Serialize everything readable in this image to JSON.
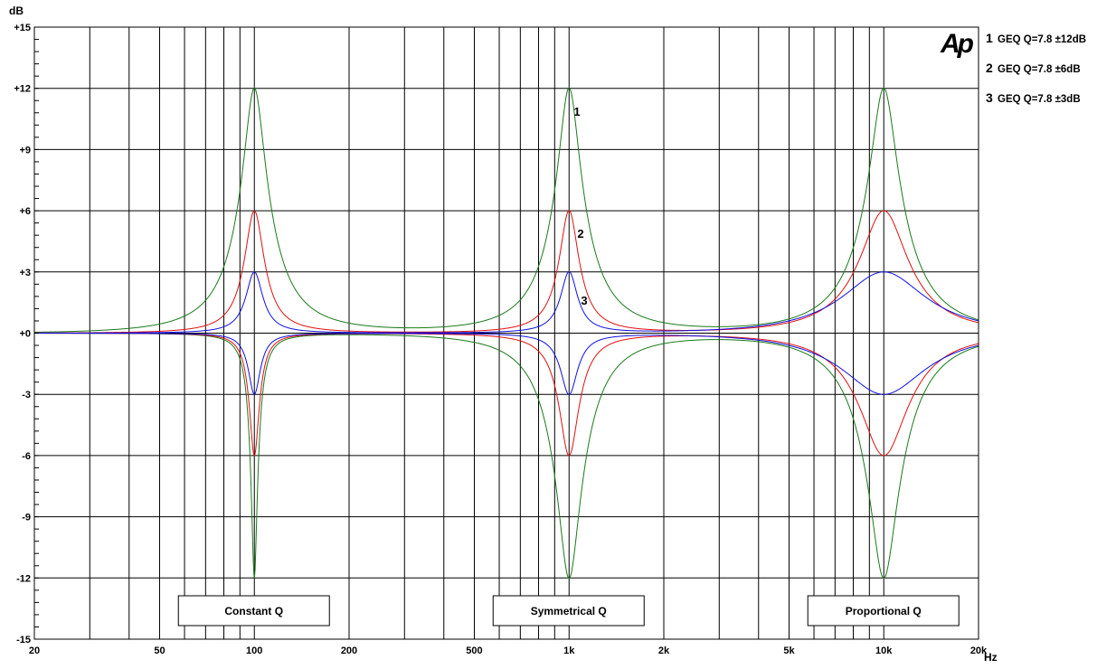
{
  "chart_data": {
    "type": "line",
    "xlabel": "Hz",
    "ylabel": "dB",
    "xscale": "log",
    "xlim": [
      20,
      20000
    ],
    "ylim": [
      -15,
      15
    ],
    "grid": true,
    "legend_placement": "right",
    "x_tick_labels": [
      {
        "value": 20,
        "label": "20"
      },
      {
        "value": 50,
        "label": "50"
      },
      {
        "value": 100,
        "label": "100"
      },
      {
        "value": 200,
        "label": "200"
      },
      {
        "value": 500,
        "label": "500"
      },
      {
        "value": 1000,
        "label": "1k"
      },
      {
        "value": 2000,
        "label": "2k"
      },
      {
        "value": 5000,
        "label": "5k"
      },
      {
        "value": 10000,
        "label": "10k"
      },
      {
        "value": 20000,
        "label": "20k"
      }
    ],
    "y_tick_labels": [
      {
        "value": 15,
        "label": "+15"
      },
      {
        "value": 12,
        "label": "+12"
      },
      {
        "value": 9,
        "label": "+9"
      },
      {
        "value": 6,
        "label": "+6"
      },
      {
        "value": 3,
        "label": "+3"
      },
      {
        "value": 0,
        "label": "+0"
      },
      {
        "value": -3,
        "label": "-3"
      },
      {
        "value": -6,
        "label": "-6"
      },
      {
        "value": -9,
        "label": "-9"
      },
      {
        "value": -12,
        "label": "-12"
      },
      {
        "value": -15,
        "label": "-15"
      }
    ],
    "sections": [
      {
        "center_hz": 100,
        "type": "constant",
        "label": "Constant Q"
      },
      {
        "center_hz": 1000,
        "type": "symmetrical",
        "label": "Symmetrical Q"
      },
      {
        "center_hz": 10000,
        "type": "proportional",
        "label": "Proportional Q"
      }
    ],
    "series": [
      {
        "id": "1",
        "name": "GEQ Q=7.8 ±12dB",
        "q": 7.8,
        "gain_db": 12,
        "color": "#1a7a1a"
      },
      {
        "id": "2",
        "name": "GEQ Q=7.8 ±6dB",
        "q": 7.8,
        "gain_db": 6,
        "color": "#e01010"
      },
      {
        "id": "3",
        "name": "GEQ Q=7.8 ±3dB",
        "q": 7.8,
        "gain_db": 3,
        "color": "#1010e0"
      }
    ]
  },
  "logo": "Ap",
  "logo_color": "#1010ff"
}
